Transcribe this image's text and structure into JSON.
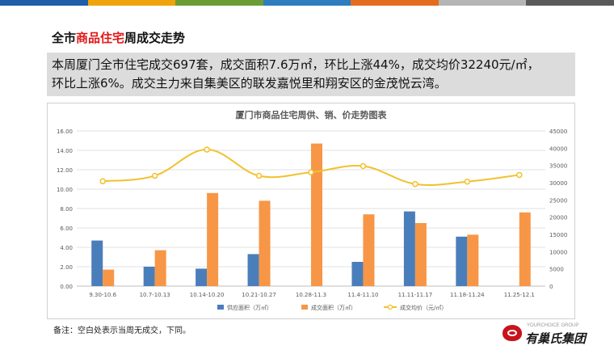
{
  "top_bar_colors": [
    "#1f5ea8",
    "#f0a30a",
    "#6c9d34",
    "#2d7dbf",
    "#e36d1c",
    "#b5b5b5",
    "#5a5a5a"
  ],
  "heading": {
    "prefix": "全市",
    "highlight": "商品住宅",
    "suffix": "周成交走势"
  },
  "summary": {
    "line1": "本周厦门全市住宅成交697套，成交面积7.6万㎡，环比上涨44%，成交均价32240元/㎡，",
    "line2": "环比上涨6%。成交主力来自集美区的联发嘉悦里和翔安区的金茂悦云湾。"
  },
  "chart_data": {
    "type": "bar",
    "title": "厦门市商品住宅周供、销、价走势图表",
    "categories": [
      "9.30-10.6",
      "10.7-10.13",
      "10.14-10.20",
      "10.21-10.27",
      "10.28-11.3",
      "11.4-11.10",
      "11.11-11.17",
      "11.18-11.24",
      "11.25-12.1"
    ],
    "left_ticks": [
      "0.00",
      "2.00",
      "4.00",
      "6.00",
      "8.00",
      "10.00",
      "12.00",
      "14.00",
      "16.00"
    ],
    "right_ticks": [
      "0",
      "5000",
      "10000",
      "15000",
      "20000",
      "25000",
      "30000",
      "35000",
      "40000",
      "45000"
    ],
    "ylim_left": [
      0,
      16
    ],
    "ylim_right": [
      0,
      45000
    ],
    "grid": true,
    "legend_position": "bottom",
    "series": [
      {
        "name": "供应面积（万㎡）",
        "kind": "bar",
        "axis": "left",
        "color": "#4a7ebb",
        "values": [
          4.7,
          2.0,
          1.8,
          3.3,
          null,
          2.5,
          7.7,
          5.1,
          null
        ]
      },
      {
        "name": "成交面积（万㎡）",
        "kind": "bar",
        "axis": "left",
        "color": "#f79646",
        "values": [
          1.7,
          3.7,
          9.6,
          8.8,
          14.7,
          7.4,
          6.5,
          5.3,
          7.6
        ]
      },
      {
        "name": "成交均价（元/㎡）",
        "kind": "line",
        "axis": "right",
        "color": "#f2c12e",
        "values": [
          30400,
          32000,
          39600,
          32000,
          33000,
          34800,
          29600,
          30300,
          32240
        ]
      }
    ]
  },
  "note": "备注：空白处表示当周无成交，下同。",
  "logo": {
    "en": "YOURCHOICE GROUP",
    "cn": "有巢氏集团"
  }
}
